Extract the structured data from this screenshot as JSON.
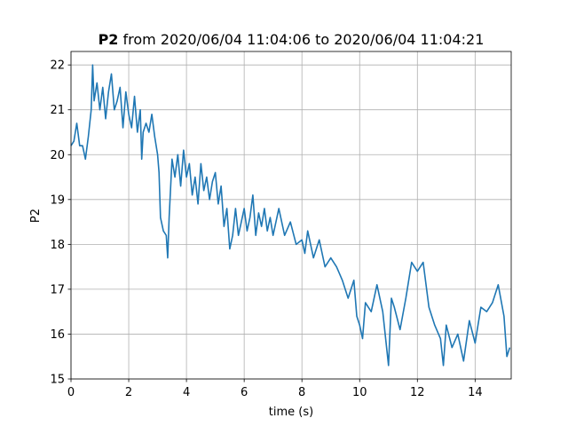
{
  "chart_data": {
    "type": "line",
    "title_bold": "P2",
    "title": "from 2020/06/04 11:04:06 to 2020/06/04 11:04:21",
    "x_label": "time (s)",
    "y_label": "P2",
    "x": [
      0,
      0.1,
      0.2,
      0.3,
      0.4,
      0.5,
      0.6,
      0.7,
      0.75,
      0.8,
      0.9,
      1.0,
      1.1,
      1.2,
      1.3,
      1.4,
      1.5,
      1.6,
      1.7,
      1.8,
      1.9,
      2.0,
      2.1,
      2.2,
      2.3,
      2.4,
      2.45,
      2.5,
      2.6,
      2.7,
      2.8,
      2.9,
      3.0,
      3.05,
      3.1,
      3.2,
      3.3,
      3.35,
      3.4,
      3.5,
      3.6,
      3.7,
      3.8,
      3.9,
      4.0,
      4.1,
      4.2,
      4.3,
      4.4,
      4.5,
      4.6,
      4.7,
      4.8,
      4.9,
      5.0,
      5.1,
      5.2,
      5.3,
      5.4,
      5.5,
      5.6,
      5.7,
      5.8,
      5.9,
      6.0,
      6.1,
      6.2,
      6.3,
      6.4,
      6.5,
      6.6,
      6.7,
      6.8,
      6.9,
      7.0,
      7.2,
      7.4,
      7.6,
      7.8,
      8.0,
      8.1,
      8.2,
      8.4,
      8.6,
      8.8,
      9.0,
      9.2,
      9.4,
      9.6,
      9.8,
      9.9,
      10.0,
      10.1,
      10.2,
      10.4,
      10.6,
      10.8,
      10.9,
      11.0,
      11.1,
      11.2,
      11.4,
      11.6,
      11.8,
      12.0,
      12.2,
      12.4,
      12.6,
      12.8,
      12.9,
      13.0,
      13.2,
      13.4,
      13.6,
      13.8,
      14.0,
      14.2,
      14.4,
      14.6,
      14.8,
      15.0,
      15.1,
      15.2
    ],
    "series": [
      {
        "name": "P2",
        "color": "#1f77b4",
        "values": [
          20.2,
          20.3,
          20.7,
          20.2,
          20.2,
          19.9,
          20.4,
          21.0,
          22.0,
          21.2,
          21.6,
          21.0,
          21.5,
          20.8,
          21.4,
          21.8,
          21.0,
          21.2,
          21.5,
          20.6,
          21.4,
          20.9,
          20.6,
          21.3,
          20.5,
          21.0,
          19.9,
          20.5,
          20.7,
          20.5,
          20.9,
          20.4,
          20.0,
          19.6,
          18.6,
          18.3,
          18.2,
          17.7,
          18.6,
          19.9,
          19.5,
          20.0,
          19.3,
          20.1,
          19.5,
          19.8,
          19.1,
          19.5,
          18.9,
          19.8,
          19.2,
          19.5,
          19.0,
          19.4,
          19.6,
          18.9,
          19.3,
          18.4,
          18.8,
          17.9,
          18.2,
          18.8,
          18.2,
          18.5,
          18.8,
          18.3,
          18.6,
          19.1,
          18.2,
          18.7,
          18.4,
          18.8,
          18.3,
          18.6,
          18.2,
          18.8,
          18.2,
          18.5,
          18.0,
          18.1,
          17.8,
          18.3,
          17.7,
          18.1,
          17.5,
          17.7,
          17.5,
          17.2,
          16.8,
          17.2,
          16.4,
          16.2,
          15.9,
          16.7,
          16.5,
          17.1,
          16.5,
          15.9,
          15.3,
          16.8,
          16.6,
          16.1,
          16.8,
          17.6,
          17.4,
          17.6,
          16.6,
          16.2,
          15.9,
          15.3,
          16.2,
          15.7,
          16.0,
          15.4,
          16.3,
          15.8,
          16.6,
          16.5,
          16.7,
          17.1,
          16.4,
          15.5,
          15.7
        ]
      }
    ],
    "xlim": [
      0,
      15.25
    ],
    "xticks": [
      0,
      2,
      4,
      6,
      8,
      10,
      12,
      14
    ],
    "ylim": [
      15,
      22.3
    ],
    "yticks": [
      15,
      16,
      17,
      18,
      19,
      20,
      21,
      22
    ],
    "grid": true
  }
}
